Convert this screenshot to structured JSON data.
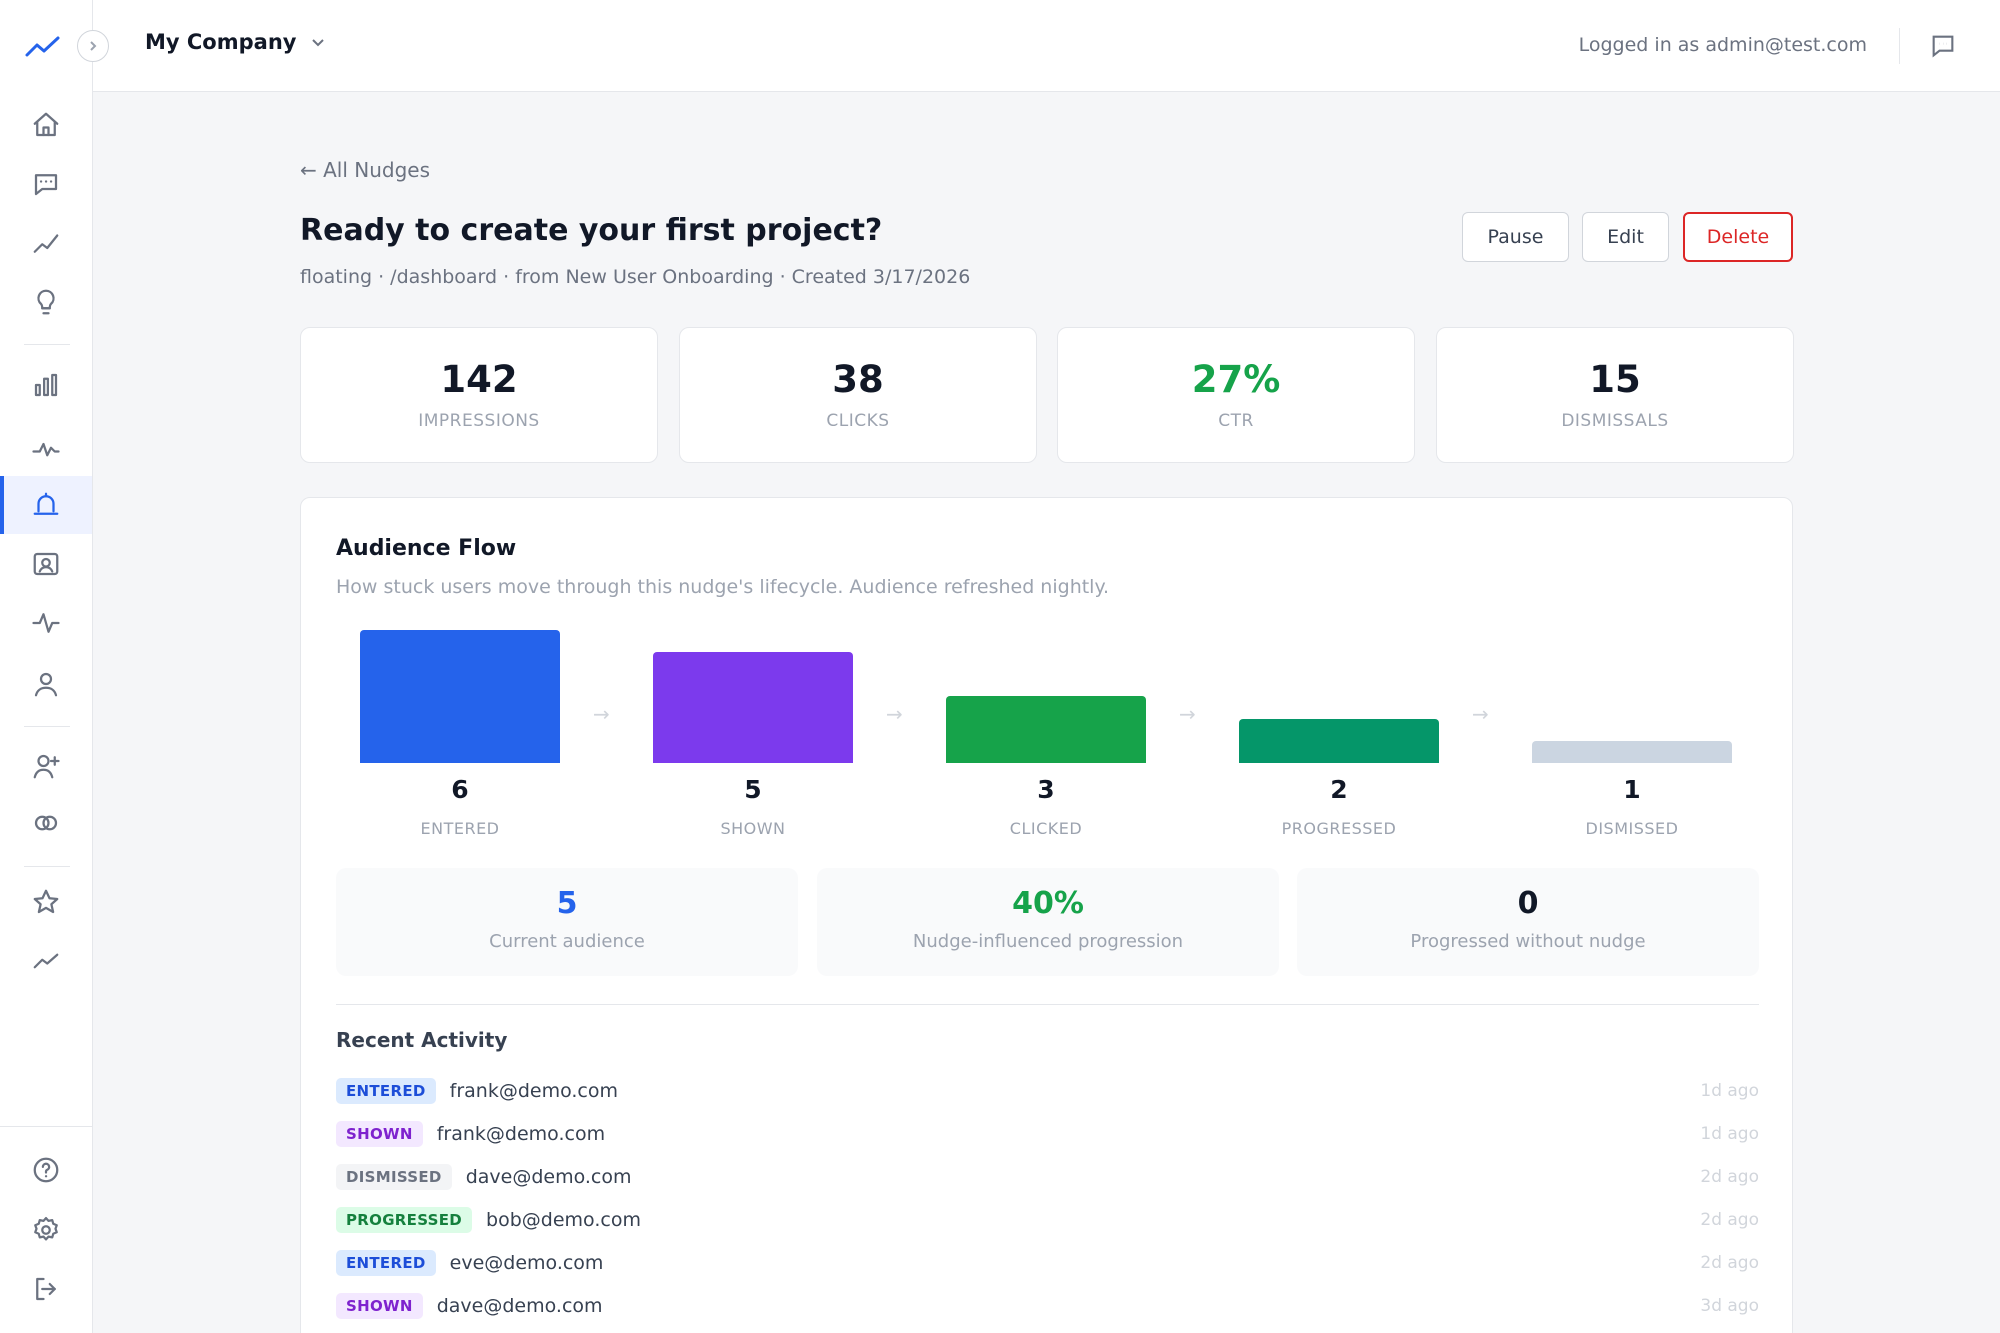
{
  "header": {
    "company": "My Company",
    "logged_in": "Logged in as admin@test.com"
  },
  "page": {
    "back_link": "← All Nudges",
    "title": "Ready to create your first project?",
    "meta": "floating · /dashboard · from New User Onboarding · Created 3/17/2026",
    "buttons": {
      "pause": "Pause",
      "edit": "Edit",
      "delete": "Delete"
    }
  },
  "stats": [
    {
      "value": "142",
      "label": "IMPRESSIONS",
      "color": "#111827"
    },
    {
      "value": "38",
      "label": "CLICKS",
      "color": "#111827"
    },
    {
      "value": "27%",
      "label": "CTR",
      "color": "#16a34a"
    },
    {
      "value": "15",
      "label": "DISMISSALS",
      "color": "#111827"
    }
  ],
  "audience_flow": {
    "title": "Audience Flow",
    "subtitle": "How stuck users move through this nudge's lifecycle. Audience refreshed nightly.",
    "arrow": "→"
  },
  "chart_data": {
    "type": "bar",
    "categories": [
      "ENTERED",
      "SHOWN",
      "CLICKED",
      "PROGRESSED",
      "DISMISSED"
    ],
    "values": [
      6,
      5,
      3,
      2,
      1
    ],
    "colors": [
      "#2563eb",
      "#7c3aed",
      "#16a34a",
      "#059669",
      "#cbd5e1"
    ],
    "ylim": [
      0,
      6
    ]
  },
  "kpis": [
    {
      "value": "5",
      "label": "Current audience",
      "color": "#2563eb"
    },
    {
      "value": "40%",
      "label": "Nudge-influenced progression",
      "color": "#16a34a"
    },
    {
      "value": "0",
      "label": "Progressed without nudge",
      "color": "#111827"
    }
  ],
  "recent_activity": {
    "title": "Recent Activity",
    "rows": [
      {
        "badge": "ENTERED",
        "email": "frank@demo.com",
        "time": "1d ago",
        "bg": "#dbeafe",
        "fg": "#1d4ed8"
      },
      {
        "badge": "SHOWN",
        "email": "frank@demo.com",
        "time": "1d ago",
        "bg": "#f3e8ff",
        "fg": "#7e22ce"
      },
      {
        "badge": "DISMISSED",
        "email": "dave@demo.com",
        "time": "2d ago",
        "bg": "#f3f4f6",
        "fg": "#6b7280"
      },
      {
        "badge": "PROGRESSED",
        "email": "bob@demo.com",
        "time": "2d ago",
        "bg": "#dcfce7",
        "fg": "#15803d"
      },
      {
        "badge": "ENTERED",
        "email": "eve@demo.com",
        "time": "2d ago",
        "bg": "#dbeafe",
        "fg": "#1d4ed8"
      },
      {
        "badge": "SHOWN",
        "email": "dave@demo.com",
        "time": "3d ago",
        "bg": "#f3e8ff",
        "fg": "#7e22ce"
      }
    ]
  },
  "sidebar_icons": [
    "home-icon",
    "chat-icon",
    "trend-icon",
    "lightbulb-icon",
    "bar-chart-icon",
    "pulse-icon",
    "bell-icon",
    "contact-card-icon",
    "activity-icon",
    "user-icon",
    "user-add-icon",
    "link-rings-icon",
    "star-icon",
    "trending-icon",
    "help-icon",
    "settings-icon",
    "logout-icon"
  ]
}
